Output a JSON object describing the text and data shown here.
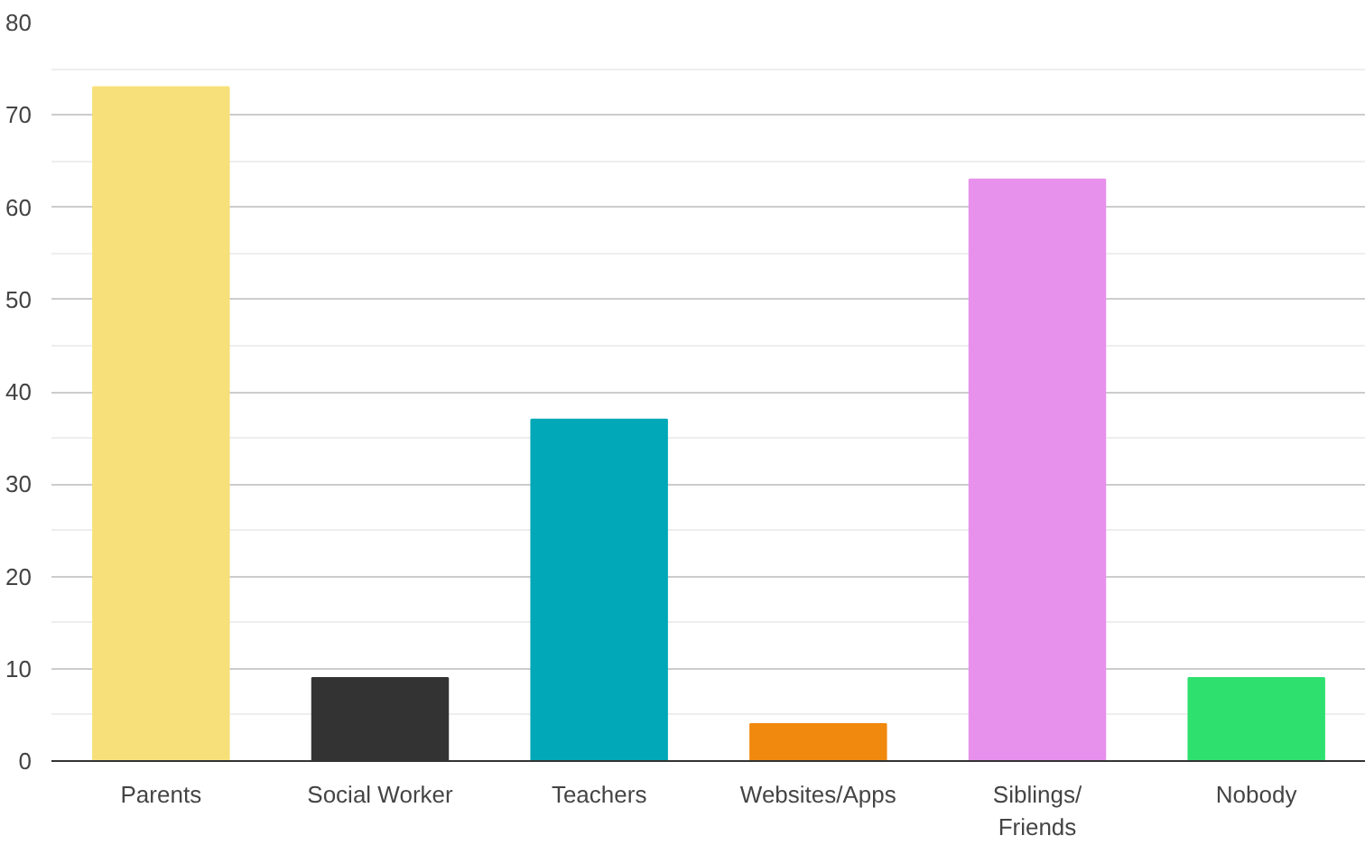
{
  "chart_data": {
    "type": "bar",
    "categories": [
      "Parents",
      "Social Worker",
      "Teachers",
      "Websites/Apps",
      "Siblings/ Friends",
      "Nobody"
    ],
    "values": [
      73,
      9,
      37,
      4,
      63,
      9
    ],
    "colors": [
      "#f7e07a",
      "#333333",
      "#00a8b8",
      "#f0890e",
      "#e791ec",
      "#2ee06e"
    ],
    "ylim": [
      0,
      80
    ],
    "yticks": [
      0,
      10,
      20,
      30,
      40,
      50,
      60,
      70,
      80
    ],
    "grid": "y"
  }
}
